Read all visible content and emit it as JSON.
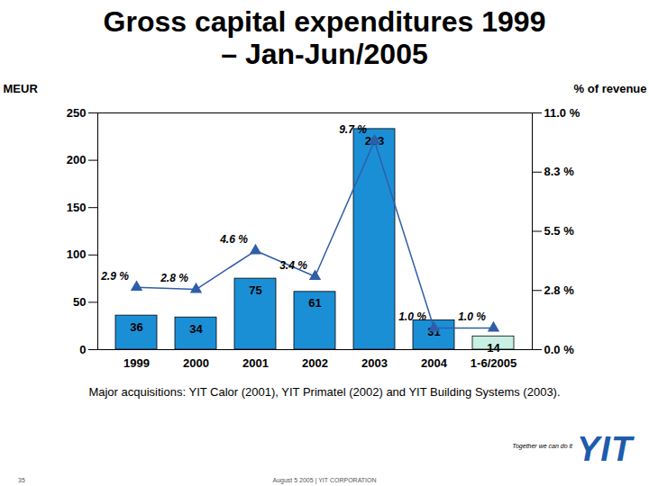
{
  "chart_data": {
    "type": "bar",
    "title": "Gross capital expenditures 1999 – Jan-Jun/2005",
    "categories": [
      "1999",
      "2000",
      "2001",
      "2002",
      "2003",
      "2004",
      "1-6/2005"
    ],
    "series": [
      {
        "name": "MEUR",
        "type": "bar",
        "data_labels": true,
        "colors": [
          "#1b8fd6",
          "#1b8fd6",
          "#1b8fd6",
          "#1b8fd6",
          "#1b8fd6",
          "#1b8fd6",
          "#c8efe4"
        ],
        "values": [
          36,
          34,
          75,
          61,
          233,
          31,
          14
        ]
      },
      {
        "name": "% of revenue",
        "type": "line",
        "axis": "y2",
        "color": "#2f5ea8",
        "marker": "triangle",
        "data_labels": true,
        "values": [
          2.9,
          2.8,
          4.6,
          3.4,
          9.7,
          1.0,
          1.0
        ],
        "value_labels": [
          "2.9 %",
          "2.8 %",
          "4.6 %",
          "3.4 %",
          "9.7 %",
          "1.0 %",
          "1.0 %"
        ]
      }
    ],
    "ylim": [
      0,
      250
    ],
    "yticks": [
      0,
      50,
      100,
      150,
      200,
      250
    ],
    "y2lim": [
      0,
      11
    ],
    "y2ticks": [
      {
        "value": 0,
        "label": "0.0 %"
      },
      {
        "value": 2.75,
        "label": "2.8 %"
      },
      {
        "value": 5.5,
        "label": "5.5 %"
      },
      {
        "value": 8.25,
        "label": "8.3 %"
      },
      {
        "value": 11,
        "label": "11.0 %"
      }
    ],
    "grid": false,
    "caption": "Major acquisitions: YIT Calor (2001), YIT Primatel (2002) and YIT Building Systems (2003).",
    "footer": {
      "slogan": "Together we can do it",
      "logo": "YIT",
      "meta": "August 5 2005 | YIT CORPORATION",
      "page": "35"
    }
  }
}
